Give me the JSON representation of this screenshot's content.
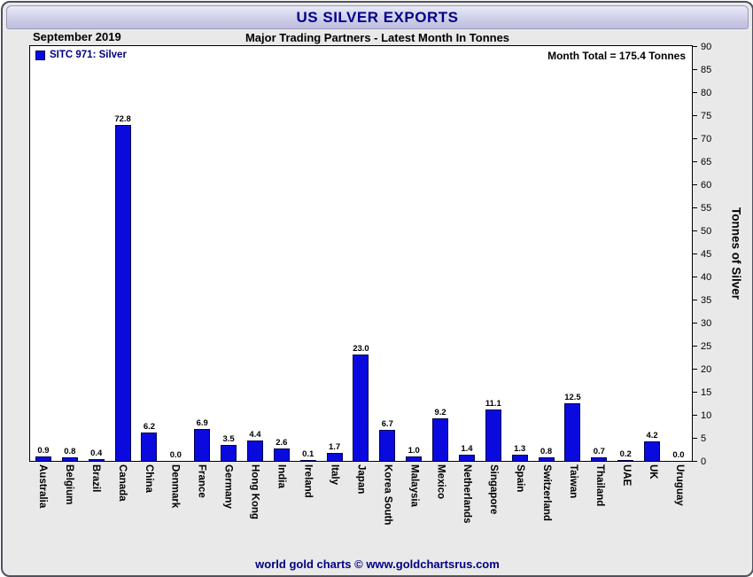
{
  "header": {
    "title": "US SILVER EXPORTS",
    "date_label": "September 2019",
    "subtitle": "Major Trading Partners - Latest Month In Tonnes"
  },
  "legend": {
    "series_label": "SITC 971: Silver",
    "month_total": "Month Total = 175.4 Tonnes"
  },
  "footer": {
    "credit": "world gold charts © www.goldchartsrus.com"
  },
  "colors": {
    "bar": "#0a0adf",
    "accent": "#000080"
  },
  "chart_data": {
    "type": "bar",
    "title": "US SILVER EXPORTS",
    "subtitle": "Major Trading Partners - Latest Month In Tonnes",
    "xlabel": "",
    "ylabel": "Tonnes of Silver",
    "ylim": [
      0,
      90
    ],
    "ytick_step": 5,
    "grid": false,
    "legend_position": "top-left",
    "legend_entries": [
      "SITC 971: Silver"
    ],
    "annotation": "Month Total = 175.4 Tonnes",
    "categories": [
      "Australia",
      "Belgium",
      "Brazil",
      "Canada",
      "China",
      "Denmark",
      "France",
      "Germany",
      "Hong Kong",
      "India",
      "Ireland",
      "Italy",
      "Japan",
      "Korea South",
      "Malaysia",
      "Mexico",
      "Netherlands",
      "Singapore",
      "Spain",
      "Switzerland",
      "Taiwan",
      "Thailand",
      "UAE",
      "UK",
      "Uruguay"
    ],
    "values": [
      0.9,
      0.8,
      0.4,
      72.8,
      6.2,
      0.0,
      6.9,
      3.5,
      4.4,
      2.6,
      0.1,
      1.7,
      23.0,
      6.7,
      1.0,
      9.2,
      1.4,
      11.1,
      1.3,
      0.8,
      12.5,
      0.7,
      0.2,
      4.2,
      0.0
    ]
  }
}
